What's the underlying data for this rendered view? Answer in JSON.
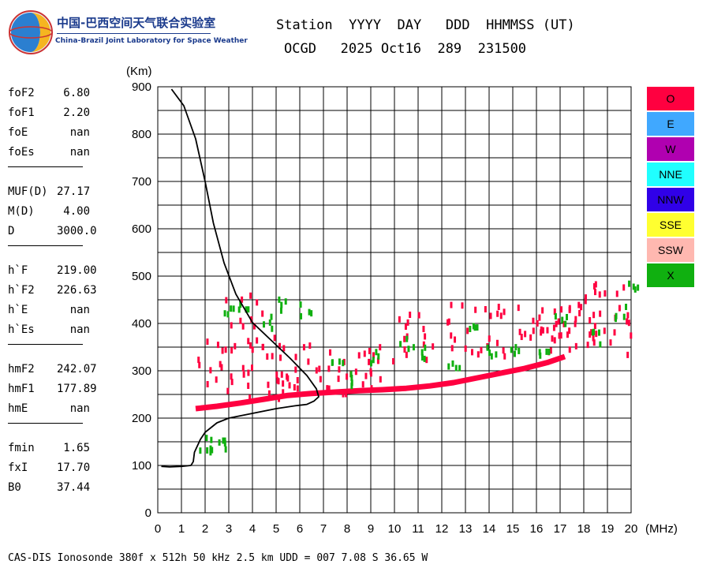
{
  "logo": {
    "cn": "中国-巴西空间天气联合实验室",
    "en": "China-Brazil Joint Laboratory for Space Weather"
  },
  "header": {
    "line1": "Station  YYYY  DAY   DDD  HHMMSS (UT)",
    "line2": "OCGD   2025 Oct16  289  231500"
  },
  "params": [
    [
      {
        "k": "foF2",
        "v": "6.80"
      },
      {
        "k": "foF1",
        "v": "2.20"
      },
      {
        "k": "foE",
        "v": "nan"
      },
      {
        "k": "foEs",
        "v": "nan"
      }
    ],
    [
      {
        "k": "MUF(D)",
        "v": "27.17"
      },
      {
        "k": "M(D)",
        "v": "4.00"
      },
      {
        "k": "D",
        "v": "3000.0"
      }
    ],
    [
      {
        "k": "h`F",
        "v": "219.00"
      },
      {
        "k": "h`F2",
        "v": "226.63"
      },
      {
        "k": "h`E",
        "v": "nan"
      },
      {
        "k": "h`Es",
        "v": "nan"
      }
    ],
    [
      {
        "k": "hmF2",
        "v": "242.07"
      },
      {
        "k": "hmF1",
        "v": "177.89"
      },
      {
        "k": "hmE",
        "v": "nan"
      }
    ],
    [
      {
        "k": "fmin",
        "v": "1.65"
      },
      {
        "k": "fxI",
        "v": "17.70"
      },
      {
        "k": "B0",
        "v": "37.44"
      }
    ]
  ],
  "legend": [
    {
      "label": "O",
      "color": "#ff0040"
    },
    {
      "label": "E",
      "color": "#40a8ff"
    },
    {
      "label": "W",
      "color": "#b000b0"
    },
    {
      "label": "NNE",
      "color": "#20ffff"
    },
    {
      "label": "NNW",
      "color": "#3000e8"
    },
    {
      "label": "SSE",
      "color": "#ffff30"
    },
    {
      "label": "SSW",
      "color": "#ffb8b0"
    },
    {
      "label": "X",
      "color": "#10b010"
    }
  ],
  "footer": "CAS-DIS Ionosonde 380f x 512h 50 kHz 2.5 km UDD = 007 7.08 S 36.65 W",
  "chart_data": {
    "type": "scatter",
    "title": "",
    "xlabel": "(MHz)",
    "ylabel": "(Km)",
    "xlim": [
      0,
      20
    ],
    "ylim": [
      0,
      900
    ],
    "xticks": [
      0,
      1,
      2,
      3,
      4,
      5,
      6,
      7,
      8,
      9,
      10,
      11,
      12,
      13,
      14,
      15,
      16,
      17,
      18,
      19,
      20
    ],
    "yticks": [
      0,
      100,
      200,
      300,
      400,
      500,
      600,
      700,
      800,
      900
    ],
    "grid": true,
    "series": [
      {
        "name": "O",
        "color": "#ff0040",
        "lower_trace": [
          [
            1.6,
            220
          ],
          [
            2.5,
            225
          ],
          [
            3.5,
            232
          ],
          [
            4.5,
            240
          ],
          [
            5.5,
            248
          ],
          [
            6.5,
            252
          ],
          [
            7.5,
            255
          ],
          [
            8.5,
            258
          ],
          [
            9.5,
            260
          ],
          [
            10.5,
            263
          ],
          [
            11.5,
            268
          ],
          [
            12.5,
            275
          ],
          [
            13.5,
            285
          ],
          [
            14.5,
            295
          ],
          [
            15.5,
            305
          ],
          [
            16.5,
            318
          ],
          [
            17.2,
            330
          ]
        ],
        "clusters": [
          {
            "x": [
              1.6,
              6.8
            ],
            "y": [
              240,
              370
            ]
          },
          {
            "x": [
              6.8,
              10.0
            ],
            "y": [
              250,
              350
            ]
          },
          {
            "x": [
              10.0,
              11.7
            ],
            "y": [
              320,
              420
            ]
          },
          {
            "x": [
              12.0,
              20.0
            ],
            "y": [
              330,
              440
            ]
          },
          {
            "x": [
              2.8,
              4.5
            ],
            "y": [
              390,
              460
            ]
          },
          {
            "x": [
              16.0,
              17.5
            ],
            "y": [
              370,
              430
            ]
          },
          {
            "x": [
              18.0,
              20.0
            ],
            "y": [
              440,
              495
            ]
          }
        ]
      },
      {
        "name": "X",
        "color": "#10b010",
        "points": [
          [
            2.0,
            145
          ],
          [
            2.3,
            140
          ],
          [
            2.8,
            148
          ],
          [
            3.0,
            420
          ],
          [
            3.5,
            430
          ],
          [
            4.5,
            400
          ],
          [
            5.3,
            440
          ],
          [
            6.2,
            430
          ],
          [
            7.5,
            320
          ],
          [
            8.0,
            280
          ],
          [
            9.0,
            330
          ],
          [
            10.5,
            360
          ],
          [
            11.2,
            340
          ],
          [
            12.5,
            320
          ],
          [
            13.4,
            380
          ],
          [
            14.0,
            340
          ],
          [
            15.0,
            350
          ],
          [
            16.3,
            330
          ],
          [
            17.0,
            410
          ],
          [
            18.5,
            370
          ],
          [
            19.5,
            420
          ],
          [
            20.0,
            480
          ]
        ]
      }
    ],
    "virtual_height_profile": [
      [
        0.15,
        98
      ],
      [
        0.5,
        97
      ],
      [
        1.0,
        98
      ],
      [
        1.4,
        100
      ],
      [
        1.5,
        108
      ],
      [
        1.55,
        128
      ],
      [
        1.8,
        155
      ],
      [
        2.0,
        170
      ],
      [
        2.5,
        190
      ],
      [
        3.0,
        200
      ],
      [
        4.0,
        210
      ],
      [
        5.0,
        220
      ],
      [
        5.8,
        226
      ],
      [
        6.3,
        229
      ],
      [
        6.6,
        236
      ],
      [
        6.8,
        245
      ],
      [
        6.7,
        262
      ],
      [
        6.3,
        290
      ],
      [
        5.6,
        326
      ],
      [
        4.8,
        364
      ],
      [
        4.0,
        402
      ],
      [
        3.3,
        462
      ],
      [
        2.8,
        528
      ],
      [
        2.35,
        612
      ],
      [
        2.0,
        700
      ],
      [
        1.6,
        790
      ],
      [
        1.1,
        860
      ],
      [
        0.58,
        895
      ]
    ]
  }
}
